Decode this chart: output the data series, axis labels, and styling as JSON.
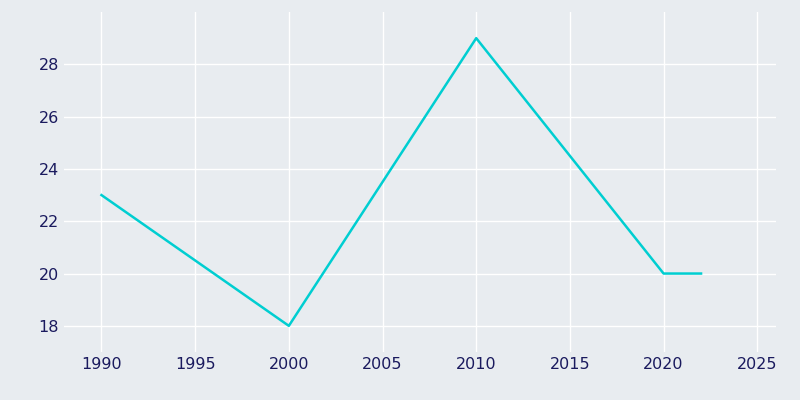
{
  "years": [
    1990,
    2000,
    2010,
    2020,
    2021,
    2022
  ],
  "population": [
    23,
    18,
    29,
    20,
    20,
    20
  ],
  "line_color": "#00CED1",
  "background_color": "#E8ECF0",
  "grid_color": "#FFFFFF",
  "text_color": "#1a1a5e",
  "xlim": [
    1988,
    2026
  ],
  "ylim": [
    17,
    30
  ],
  "xticks": [
    1990,
    1995,
    2000,
    2005,
    2010,
    2015,
    2020,
    2025
  ],
  "yticks": [
    18,
    20,
    22,
    24,
    26,
    28
  ],
  "line_width": 1.8,
  "tick_fontsize": 11.5
}
